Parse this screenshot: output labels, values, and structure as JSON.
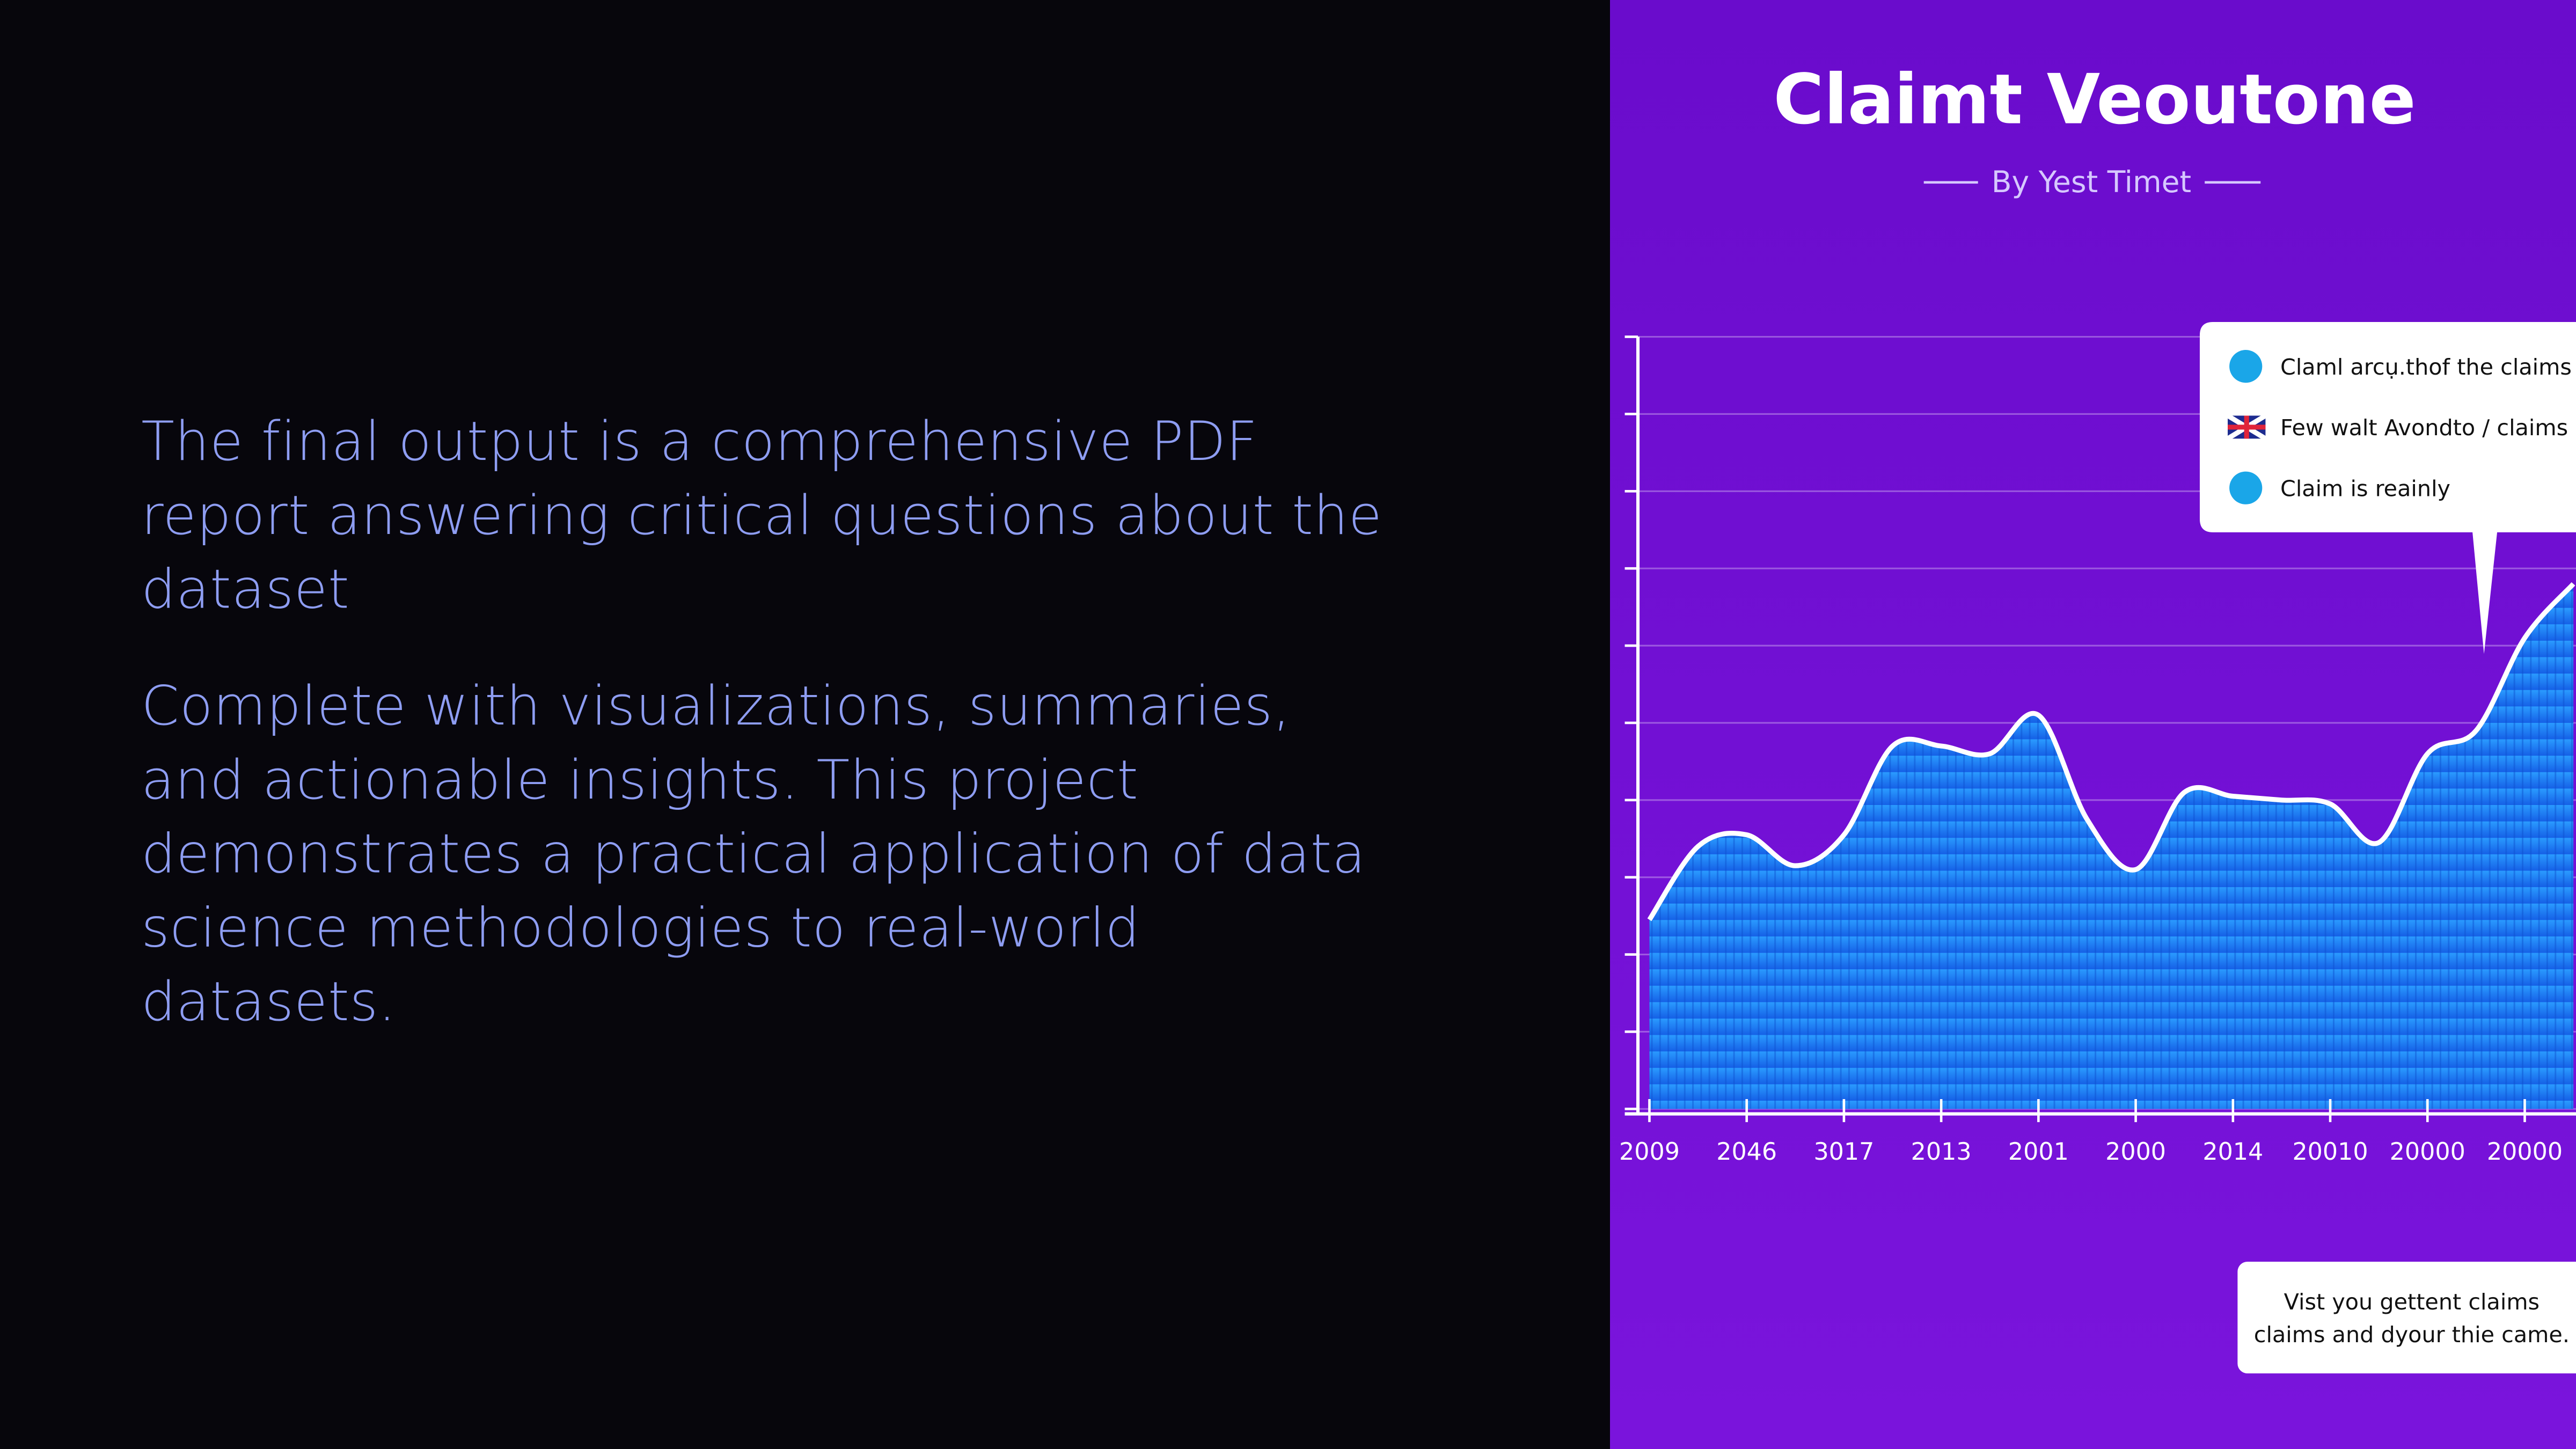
{
  "slide": {
    "paragraphs": [
      [
        "The final output is a comprehensive PDF",
        "report answering critical questions about the",
        "dataset"
      ],
      [
        " Complete with visualizations, summaries,",
        "and actionable insights. This project",
        "demonstrates a practical application of data",
        "science methodologies to real-world",
        "datasets."
      ]
    ]
  },
  "chart_data": {
    "type": "area",
    "title": "Claimt Veoutone",
    "subtitle": "By Yest Timet",
    "categories": [
      "2009",
      null,
      "2046",
      null,
      "3017",
      null,
      "2013",
      null,
      "2001",
      null,
      "2000",
      null,
      "2014",
      null,
      "20010",
      null,
      "20000",
      null,
      "20000",
      null
    ],
    "values": [
      24.5,
      34,
      35.5,
      31.5,
      35.5,
      47,
      47,
      46,
      51,
      37.5,
      31,
      41,
      40.5,
      40,
      39.5,
      34.5,
      46,
      49,
      61,
      68
    ],
    "ylim": [
      0,
      100
    ],
    "yticks": [
      0,
      10,
      20,
      30,
      40,
      50,
      60,
      70,
      80,
      90,
      100
    ],
    "grid": true,
    "color": "#1f8bff",
    "callout": [
      "Claml arcụ.thof the claims",
      "Few walt Avondto / claims",
      "Claim is reainly"
    ],
    "note": [
      "Vist you gettent claims",
      "claims and dyour thie came."
    ]
  }
}
